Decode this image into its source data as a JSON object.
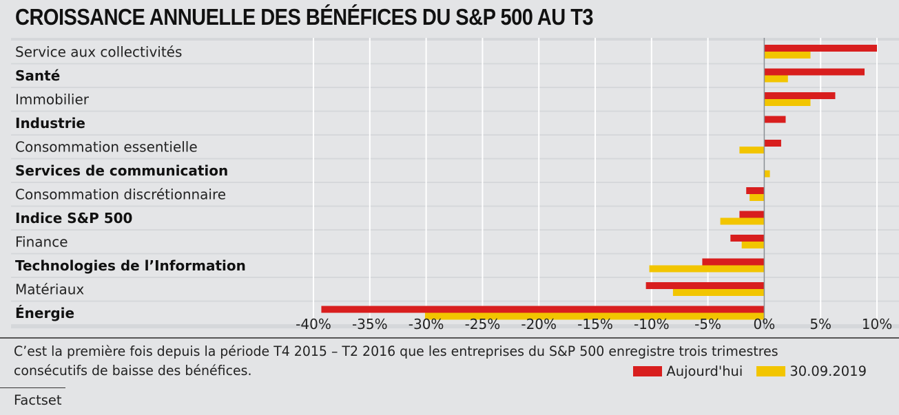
{
  "chart_data": {
    "type": "bar",
    "orientation": "horizontal",
    "title": "CROISSANCE ANNUELLE DES BÉNÉFICES DU S&P 500 AU T3",
    "categories": [
      "Service aux collectivités",
      "Santé",
      "Immobilier",
      "Industrie",
      "Consommation essentielle",
      "Services de communication",
      "Consommation discrétionnaire",
      "Indice S&P 500",
      "Finance",
      "Technologies de l’Information",
      "Matériaux",
      "Énergie"
    ],
    "bold_categories": [
      false,
      true,
      false,
      true,
      false,
      true,
      false,
      true,
      false,
      true,
      false,
      true
    ],
    "series": [
      {
        "name": "Aujourd'hui",
        "color": "#d81e1e",
        "values": [
          10.0,
          8.9,
          6.3,
          1.9,
          1.5,
          0.0,
          -1.6,
          -2.2,
          -3.0,
          -5.5,
          -10.5,
          -39.3
        ]
      },
      {
        "name": "30.09.2019",
        "color": "#f2c500",
        "values": [
          4.1,
          2.1,
          4.1,
          0.0,
          -2.2,
          0.5,
          -1.3,
          -3.9,
          -2.0,
          -10.2,
          -8.1,
          -30.1
        ]
      }
    ],
    "xlim": [
      -40,
      10
    ],
    "ticks": [
      -40,
      -35,
      -30,
      -25,
      -20,
      -15,
      -10,
      -5,
      0,
      5,
      10
    ],
    "tick_labels": [
      "-40%",
      "-35%",
      "-30%",
      "-25%",
      "-20%",
      "-15%",
      "-10%",
      "-5%",
      "0%",
      "5%",
      "10%"
    ],
    "grid": true,
    "legend_position": "bottom-right"
  },
  "note": "C’est la première fois depuis la période T4 2015 – T2 2016 que les entreprises du S&P 500 enregistre trois trimestres consécutifs de baisse des bénéfices.",
  "source": "Factset"
}
